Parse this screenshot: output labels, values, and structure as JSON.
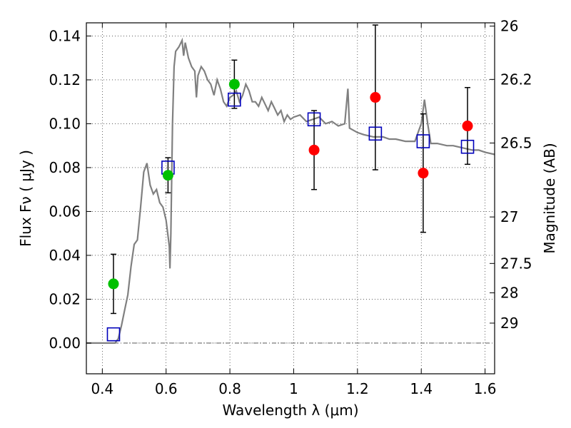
{
  "chart_data": {
    "type": "scatter",
    "xlabel": "Wavelength  λ (μm)",
    "ylabel": "Flux  Fν  ( μJy )",
    "ylabel_right": "Magnitude (AB)",
    "xlim": [
      0.35,
      1.63
    ],
    "ylim": [
      -0.014,
      0.146
    ],
    "x_ticks": [
      0.4,
      0.6,
      0.8,
      1.0,
      1.2,
      1.4,
      1.6
    ],
    "x_tick_labels": [
      "0.4",
      "0.6",
      "0.8",
      "1",
      "1.2",
      "1.4",
      "1.6"
    ],
    "y_ticks": [
      0.0,
      0.02,
      0.04,
      0.06,
      0.08,
      0.1,
      0.12,
      0.14
    ],
    "y_tick_labels": [
      "0.00",
      "0.02",
      "0.04",
      "0.06",
      "0.08",
      "0.10",
      "0.12",
      "0.14"
    ],
    "right_ticks": [
      {
        "label": "26",
        "flux": 0.1445
      },
      {
        "label": "26.2",
        "flux": 0.1202
      },
      {
        "label": "26.5",
        "flux": 0.0912
      },
      {
        "label": "27",
        "flux": 0.0575
      },
      {
        "label": "27.5",
        "flux": 0.0363
      },
      {
        "label": "28",
        "flux": 0.0229
      },
      {
        "label": "29",
        "flux": 0.0091
      }
    ],
    "grid": true,
    "colors": {
      "model": "#808080",
      "green": "#00c000",
      "red": "#ff0000",
      "square": "#0000bb",
      "errorbar": "#000000"
    },
    "series": [
      {
        "kind": "line",
        "points": [
          [
            0.35,
            0.0
          ],
          [
            0.44,
            0.0
          ],
          [
            0.45,
            0.002
          ],
          [
            0.46,
            0.008
          ],
          [
            0.47,
            0.015
          ],
          [
            0.48,
            0.022
          ],
          [
            0.49,
            0.035
          ],
          [
            0.5,
            0.045
          ],
          [
            0.51,
            0.047
          ],
          [
            0.52,
            0.062
          ],
          [
            0.53,
            0.078
          ],
          [
            0.54,
            0.082
          ],
          [
            0.55,
            0.072
          ],
          [
            0.56,
            0.068
          ],
          [
            0.57,
            0.07
          ],
          [
            0.58,
            0.064
          ],
          [
            0.59,
            0.062
          ],
          [
            0.6,
            0.056
          ],
          [
            0.605,
            0.05
          ],
          [
            0.61,
            0.044
          ],
          [
            0.612,
            0.034
          ],
          [
            0.615,
            0.05
          ],
          [
            0.62,
            0.1
          ],
          [
            0.625,
            0.126
          ],
          [
            0.63,
            0.133
          ],
          [
            0.64,
            0.135
          ],
          [
            0.65,
            0.138
          ],
          [
            0.655,
            0.131
          ],
          [
            0.66,
            0.137
          ],
          [
            0.67,
            0.13
          ],
          [
            0.68,
            0.126
          ],
          [
            0.69,
            0.124
          ],
          [
            0.695,
            0.112
          ],
          [
            0.7,
            0.122
          ],
          [
            0.71,
            0.126
          ],
          [
            0.72,
            0.124
          ],
          [
            0.73,
            0.12
          ],
          [
            0.74,
            0.118
          ],
          [
            0.75,
            0.113
          ],
          [
            0.76,
            0.12
          ],
          [
            0.77,
            0.116
          ],
          [
            0.78,
            0.11
          ],
          [
            0.79,
            0.108
          ],
          [
            0.8,
            0.112
          ],
          [
            0.81,
            0.113
          ],
          [
            0.82,
            0.115
          ],
          [
            0.83,
            0.11
          ],
          [
            0.84,
            0.113
          ],
          [
            0.85,
            0.118
          ],
          [
            0.86,
            0.115
          ],
          [
            0.87,
            0.11
          ],
          [
            0.88,
            0.11
          ],
          [
            0.89,
            0.108
          ],
          [
            0.9,
            0.112
          ],
          [
            0.91,
            0.109
          ],
          [
            0.92,
            0.106
          ],
          [
            0.93,
            0.11
          ],
          [
            0.94,
            0.107
          ],
          [
            0.95,
            0.104
          ],
          [
            0.96,
            0.106
          ],
          [
            0.97,
            0.101
          ],
          [
            0.98,
            0.104
          ],
          [
            0.99,
            0.102
          ],
          [
            1.0,
            0.103
          ],
          [
            1.02,
            0.104
          ],
          [
            1.04,
            0.101
          ],
          [
            1.06,
            0.102
          ],
          [
            1.08,
            0.103
          ],
          [
            1.1,
            0.1
          ],
          [
            1.12,
            0.101
          ],
          [
            1.14,
            0.099
          ],
          [
            1.16,
            0.1
          ],
          [
            1.17,
            0.116
          ],
          [
            1.175,
            0.098
          ],
          [
            1.2,
            0.096
          ],
          [
            1.22,
            0.095
          ],
          [
            1.25,
            0.094
          ],
          [
            1.28,
            0.094
          ],
          [
            1.3,
            0.093
          ],
          [
            1.32,
            0.093
          ],
          [
            1.35,
            0.092
          ],
          [
            1.38,
            0.092
          ],
          [
            1.4,
            0.1
          ],
          [
            1.41,
            0.111
          ],
          [
            1.42,
            0.1
          ],
          [
            1.43,
            0.091
          ],
          [
            1.45,
            0.091
          ],
          [
            1.48,
            0.09
          ],
          [
            1.5,
            0.09
          ],
          [
            1.53,
            0.089
          ],
          [
            1.56,
            0.088
          ],
          [
            1.58,
            0.088
          ],
          [
            1.6,
            0.087
          ],
          [
            1.63,
            0.086
          ]
        ]
      },
      {
        "kind": "errorbar-points",
        "marker": "circle",
        "color": "green",
        "points": [
          {
            "x": 0.435,
            "y": 0.027,
            "err": 0.0135
          },
          {
            "x": 0.606,
            "y": 0.0765,
            "err": 0.008
          },
          {
            "x": 0.814,
            "y": 0.118,
            "err": 0.011
          }
        ]
      },
      {
        "kind": "errorbar-points",
        "marker": "circle",
        "color": "red",
        "points": [
          {
            "x": 1.064,
            "y": 0.088,
            "err": 0.018
          },
          {
            "x": 1.256,
            "y": 0.112,
            "err": 0.033
          },
          {
            "x": 1.406,
            "y": 0.0775,
            "err": 0.027
          },
          {
            "x": 1.545,
            "y": 0.099,
            "err": 0.0175
          }
        ]
      },
      {
        "kind": "points",
        "marker": "open-square",
        "color": "square",
        "points": [
          {
            "x": 0.435,
            "y": 0.004
          },
          {
            "x": 0.606,
            "y": 0.08
          },
          {
            "x": 0.814,
            "y": 0.111
          },
          {
            "x": 1.064,
            "y": 0.102
          },
          {
            "x": 1.256,
            "y": 0.0955
          },
          {
            "x": 1.406,
            "y": 0.092
          },
          {
            "x": 1.545,
            "y": 0.0895
          }
        ]
      }
    ]
  }
}
